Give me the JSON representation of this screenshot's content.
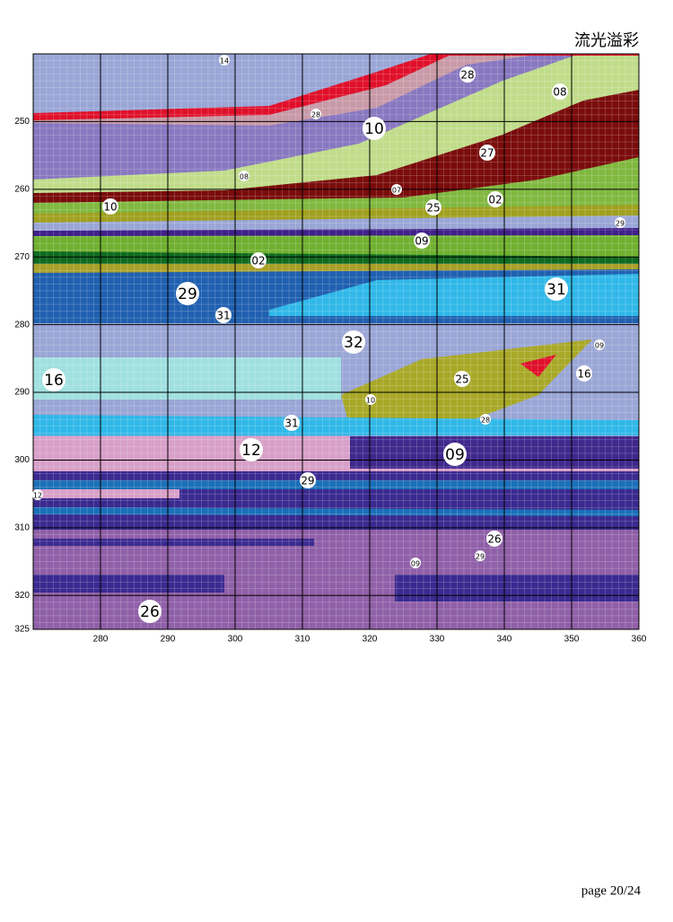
{
  "chart_data": {
    "type": "pattern",
    "title": "流光溢彩",
    "xlim": [
      270,
      360
    ],
    "ylim": [
      240,
      325
    ],
    "xticks": [
      280,
      290,
      300,
      310,
      320,
      330,
      340,
      350,
      360
    ],
    "yticks": [
      250,
      260,
      270,
      280,
      290,
      300,
      310,
      320,
      325
    ],
    "grid": true,
    "labels": [
      "14",
      "28",
      "08",
      "28",
      "10",
      "27",
      "08",
      "07",
      "02",
      "25",
      "10",
      "29",
      "09",
      "02",
      "29",
      "31",
      "31",
      "32",
      "09",
      "16",
      "25",
      "16",
      "10",
      "31",
      "28",
      "12",
      "09",
      "29",
      "12",
      "26",
      "29",
      "09",
      "26"
    ]
  },
  "footer": "page 20/24"
}
